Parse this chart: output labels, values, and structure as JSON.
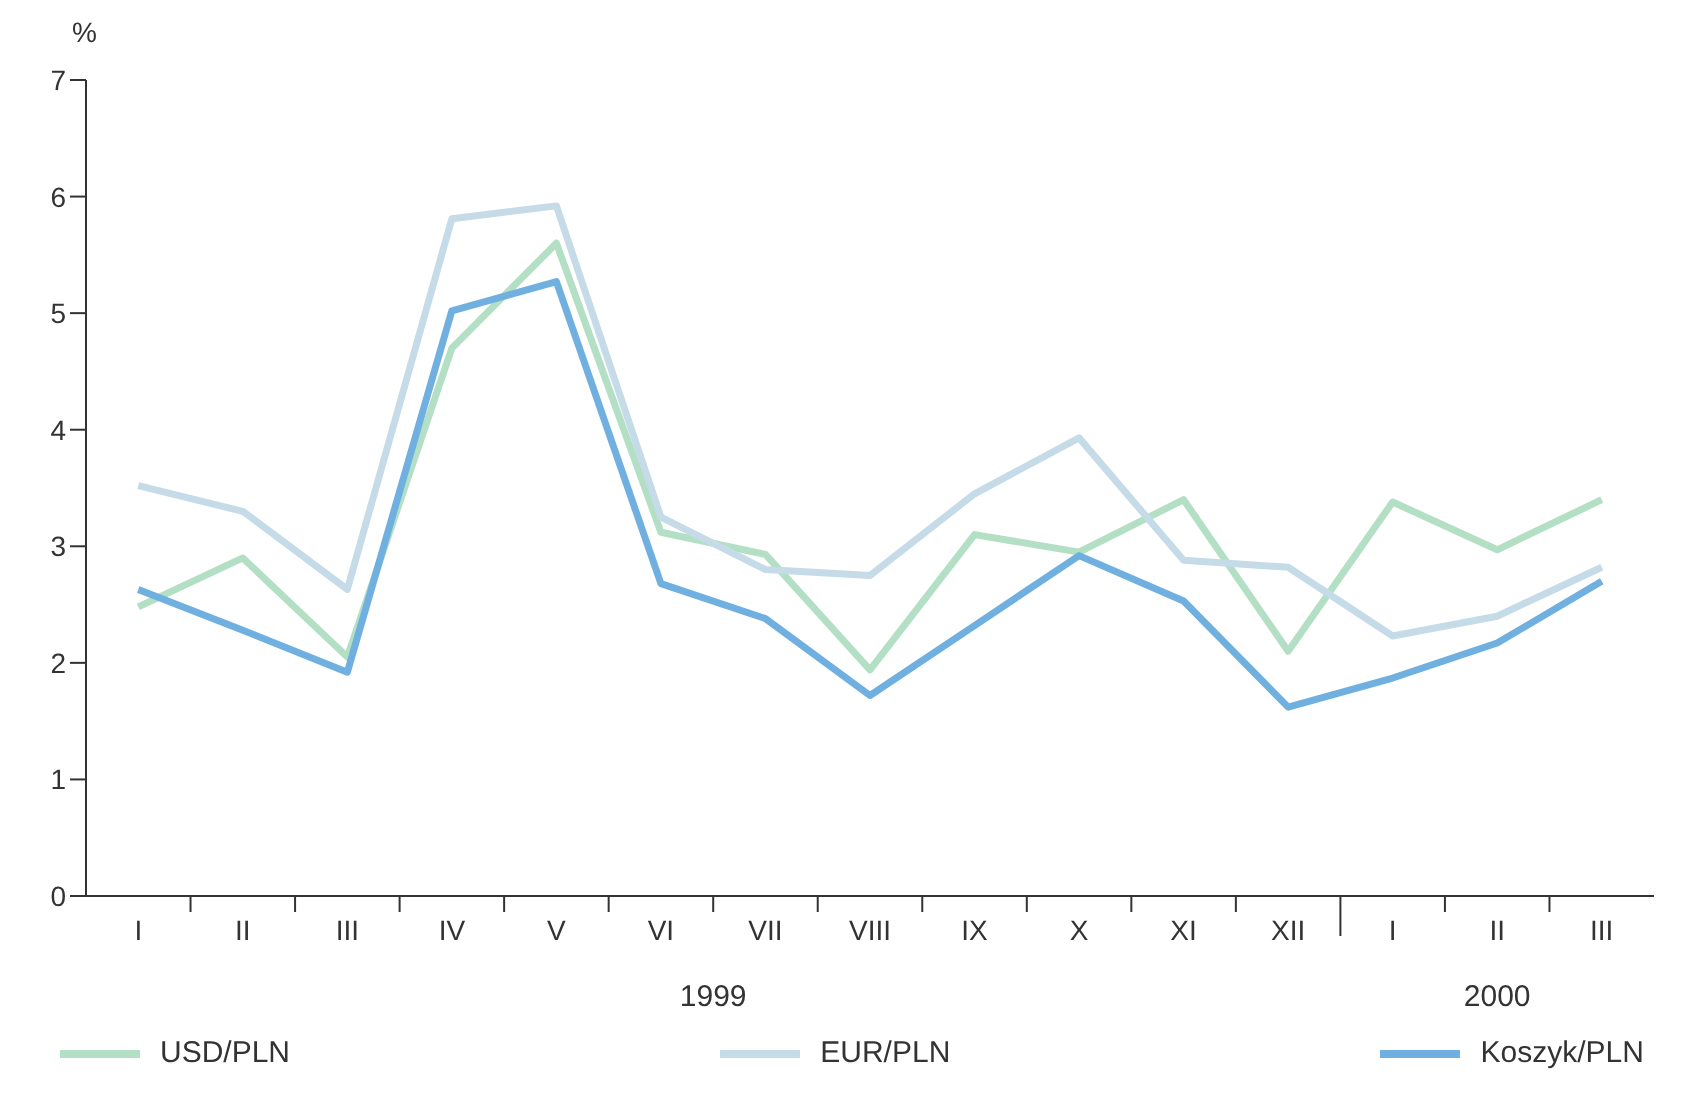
{
  "chart_data": {
    "type": "line",
    "ylabel": "%",
    "categories": [
      "I",
      "II",
      "III",
      "IV",
      "V",
      "VI",
      "VII",
      "VIII",
      "IX",
      "X",
      "XI",
      "XII",
      "I",
      "II",
      "III"
    ],
    "series": [
      {
        "name": "USD/PLN",
        "color": "#b3dfc4",
        "values": [
          2.48,
          2.9,
          2.05,
          4.7,
          5.6,
          3.12,
          2.93,
          1.94,
          3.1,
          2.95,
          3.4,
          2.1,
          3.38,
          2.97,
          3.4
        ]
      },
      {
        "name": "EUR/PLN",
        "color": "#c5dbe8",
        "values": [
          3.52,
          3.3,
          2.63,
          5.81,
          5.92,
          3.25,
          2.8,
          2.75,
          3.45,
          3.93,
          2.88,
          2.82,
          2.23,
          2.4,
          2.82
        ]
      },
      {
        "name": "Koszyk/PLN",
        "color": "#6fb0e0",
        "values": [
          2.63,
          2.28,
          1.92,
          5.02,
          5.27,
          2.68,
          2.38,
          1.72,
          2.32,
          2.92,
          2.53,
          1.62,
          1.87,
          2.17,
          2.7
        ]
      }
    ],
    "ylim": [
      0,
      7
    ],
    "yticks": [
      0,
      1,
      2,
      3,
      4,
      5,
      6,
      7
    ],
    "legend": "bottom",
    "marker": "none",
    "line_style": "solid",
    "annotations": [
      "1999",
      "2000"
    ]
  }
}
